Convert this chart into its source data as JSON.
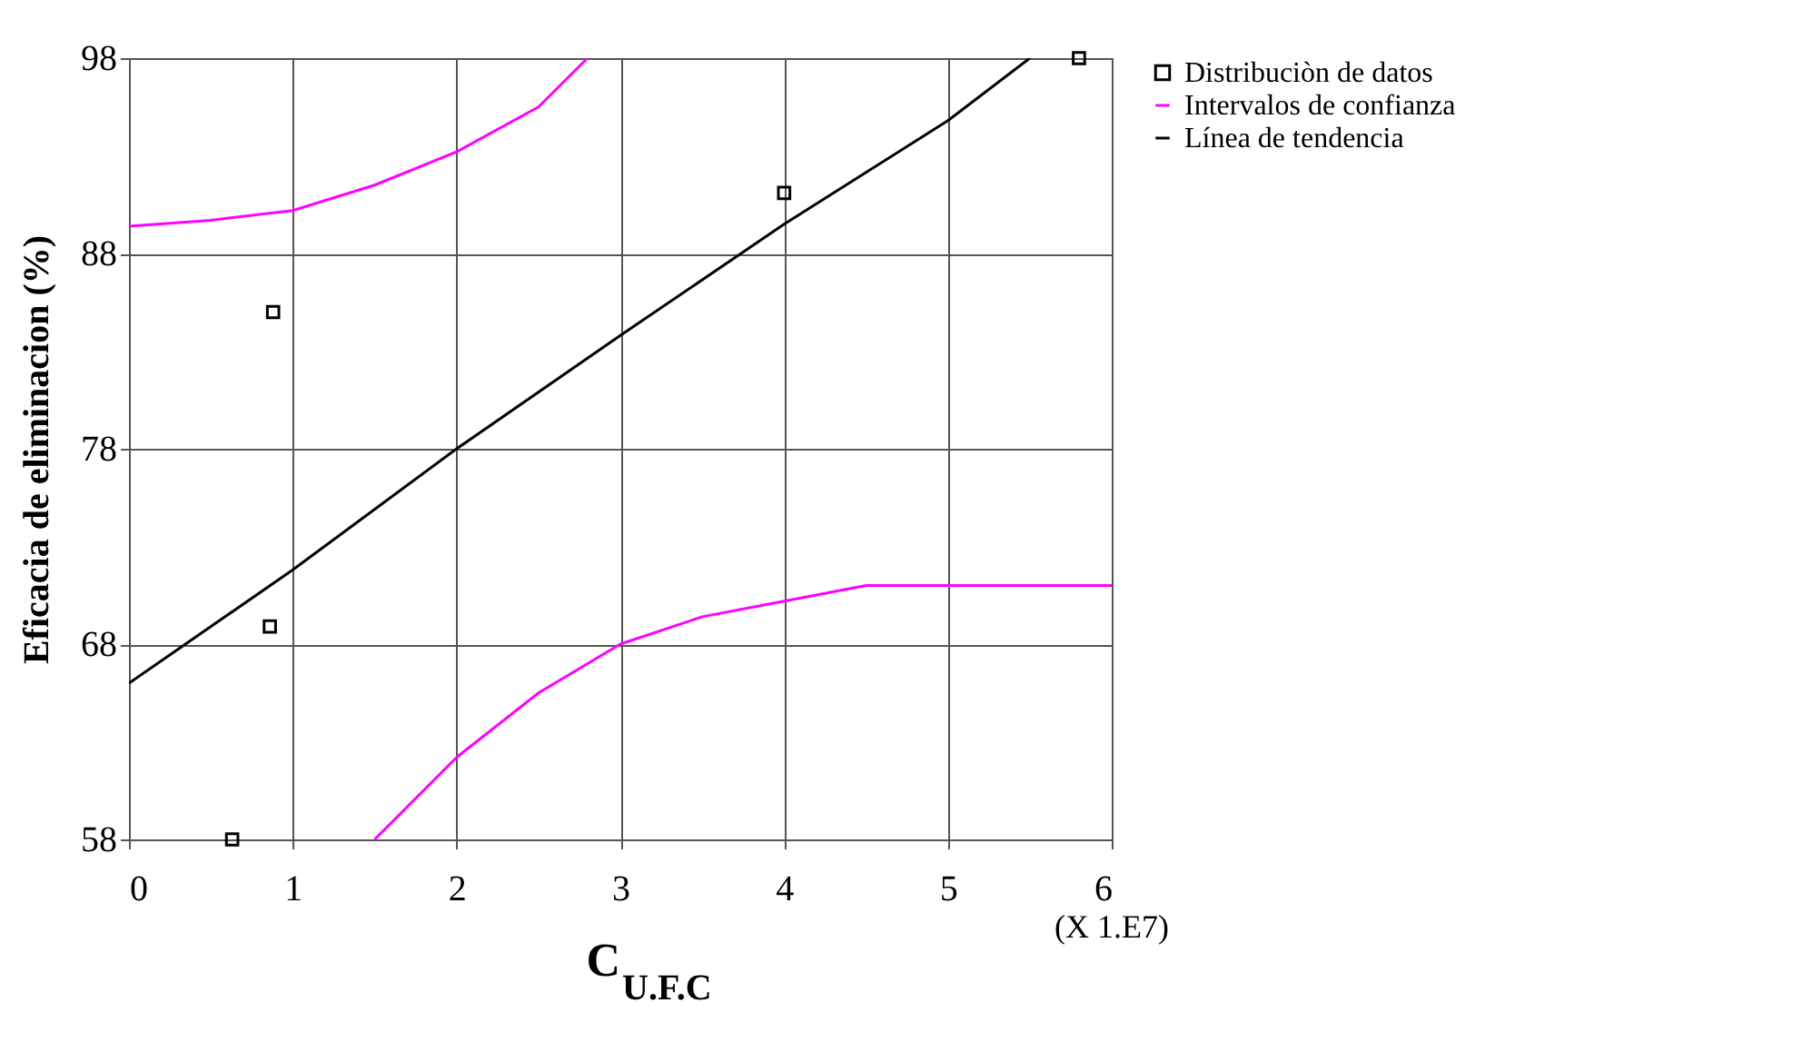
{
  "chart_data": {
    "type": "scatter",
    "xlabel": "C$_{U.F.C}$",
    "ylabel": "Eficacia de eliminacion (%)",
    "annotations": [
      "(X 1.E7)"
    ],
    "xlim": [
      0,
      6
    ],
    "xticks": [
      0,
      1,
      2,
      3,
      4,
      5,
      6
    ],
    "ylim": [
      58,
      98
    ],
    "yticks": [
      58,
      68,
      78,
      88,
      98
    ],
    "grid": true,
    "legend": "right",
    "series": [
      {
        "name": "Distribuciòn de datos",
        "marker": "square",
        "color": "#000000",
        "x": [
          0.63,
          0.86,
          0.88,
          4.0,
          5.8
        ],
        "values": [
          58,
          68.9,
          85,
          91.1,
          98
        ]
      },
      {
        "name": "Intervalos de confianza",
        "type": "line",
        "marker": "none",
        "color": "#ff00ff",
        "x": [
          0,
          0.5,
          1,
          1.5,
          2,
          2.5,
          2.8
        ],
        "values": [
          89.4,
          89.7,
          90.2,
          91.5,
          93.2,
          95.5,
          98
        ]
      },
      {
        "type": "line",
        "marker": "none",
        "color": "#ff00ff",
        "x": [
          1.5,
          2,
          2.5,
          3,
          3.5,
          4,
          4.5,
          6
        ],
        "values": [
          58,
          62.2,
          65.5,
          68,
          69.4,
          70.2,
          71,
          71
        ]
      },
      {
        "name": "Línea de tendencia",
        "type": "line",
        "marker": "none",
        "color": "#000000",
        "x": [
          0,
          1,
          2,
          3,
          4,
          5,
          5.5
        ],
        "values": [
          66,
          71.8,
          78,
          83.8,
          89.5,
          94.8,
          98
        ]
      }
    ]
  }
}
